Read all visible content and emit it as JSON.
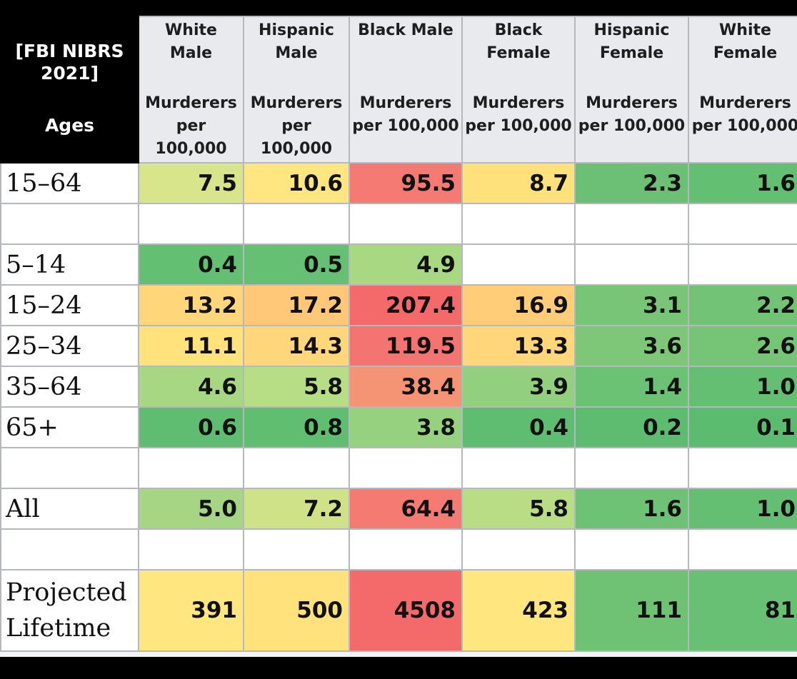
{
  "chart_data": {
    "type": "table",
    "corner": {
      "title_line1": "[FBI NIBRS",
      "title_line2": "2021]",
      "ages_label": "Ages"
    },
    "columns": [
      {
        "group": [
          "White",
          "Male"
        ],
        "unit": [
          "Murderers",
          "per",
          "100,000"
        ]
      },
      {
        "group": [
          "Hispanic",
          "Male"
        ],
        "unit": [
          "Murderers",
          "per",
          "100,000"
        ]
      },
      {
        "group": [
          "Black Male"
        ],
        "unit": [
          "Murderers",
          "per 100,000"
        ]
      },
      {
        "group": [
          "Black",
          "Female"
        ],
        "unit": [
          "Murderers",
          "per 100,000"
        ]
      },
      {
        "group": [
          "Hispanic",
          "Female"
        ],
        "unit": [
          "Murderers",
          "per 100,000"
        ]
      },
      {
        "group": [
          "White",
          "Female"
        ],
        "unit": [
          "Murderers",
          "per 100,000"
        ]
      }
    ],
    "rows": [
      {
        "label": "15–64",
        "values": [
          "7.5",
          "10.6",
          "95.5",
          "8.7",
          "2.3",
          "1.6"
        ]
      },
      {
        "spacer": true
      },
      {
        "label": "5–14",
        "values": [
          "0.4",
          "0.5",
          "4.9",
          "",
          "",
          ""
        ]
      },
      {
        "label": "15–24",
        "values": [
          "13.2",
          "17.2",
          "207.4",
          "16.9",
          "3.1",
          "2.2"
        ]
      },
      {
        "label": "25–34",
        "values": [
          "11.1",
          "14.3",
          "119.5",
          "13.3",
          "3.6",
          "2.6"
        ]
      },
      {
        "label": "35–64",
        "values": [
          "4.6",
          "5.8",
          "38.4",
          "3.9",
          "1.4",
          "1.0"
        ]
      },
      {
        "label": "65+",
        "values": [
          "0.6",
          "0.8",
          "3.8",
          "0.4",
          "0.2",
          "0.1"
        ]
      },
      {
        "spacer": true
      },
      {
        "label": "All",
        "values": [
          "5.0",
          "7.2",
          "64.4",
          "5.8",
          "1.6",
          "1.0"
        ]
      },
      {
        "spacer": true
      },
      {
        "label": [
          "Projected",
          "Lifetime"
        ],
        "values": [
          "391",
          "500",
          "4508",
          "423",
          "111",
          "81"
        ]
      }
    ],
    "cell_colors": [
      [
        "#d9e58a",
        "#ffe680",
        "#f47a73",
        "#ffe17c",
        "#6cc075",
        "#63bf72"
      ],
      null,
      [
        "#63bf72",
        "#66c073",
        "#a9d883",
        "",
        "",
        ""
      ],
      [
        "#ffd77a",
        "#ffc878",
        "#f46a6b",
        "#ffcd78",
        "#78c577",
        "#73c376"
      ],
      [
        "#ffe27c",
        "#ffd67a",
        "#f47471",
        "#ffd67a",
        "#7ec779",
        "#76c476"
      ],
      [
        "#a7d783",
        "#b7dd85",
        "#f59474",
        "#92cf7f",
        "#6bc174",
        "#65bf73"
      ],
      [
        "#5fbd71",
        "#60be71",
        "#96d17f",
        "#5fbd71",
        "#5dbc70",
        "#5bbb6f"
      ],
      null,
      [
        "#a6d683",
        "#cfe288",
        "#f47a72",
        "#b8dd85",
        "#6ec275",
        "#65bf73"
      ],
      null,
      [
        "#ffe67e",
        "#ffe27c",
        "#f46a6b",
        "#ffe67e",
        "#6fc274",
        "#67c073"
      ]
    ]
  }
}
